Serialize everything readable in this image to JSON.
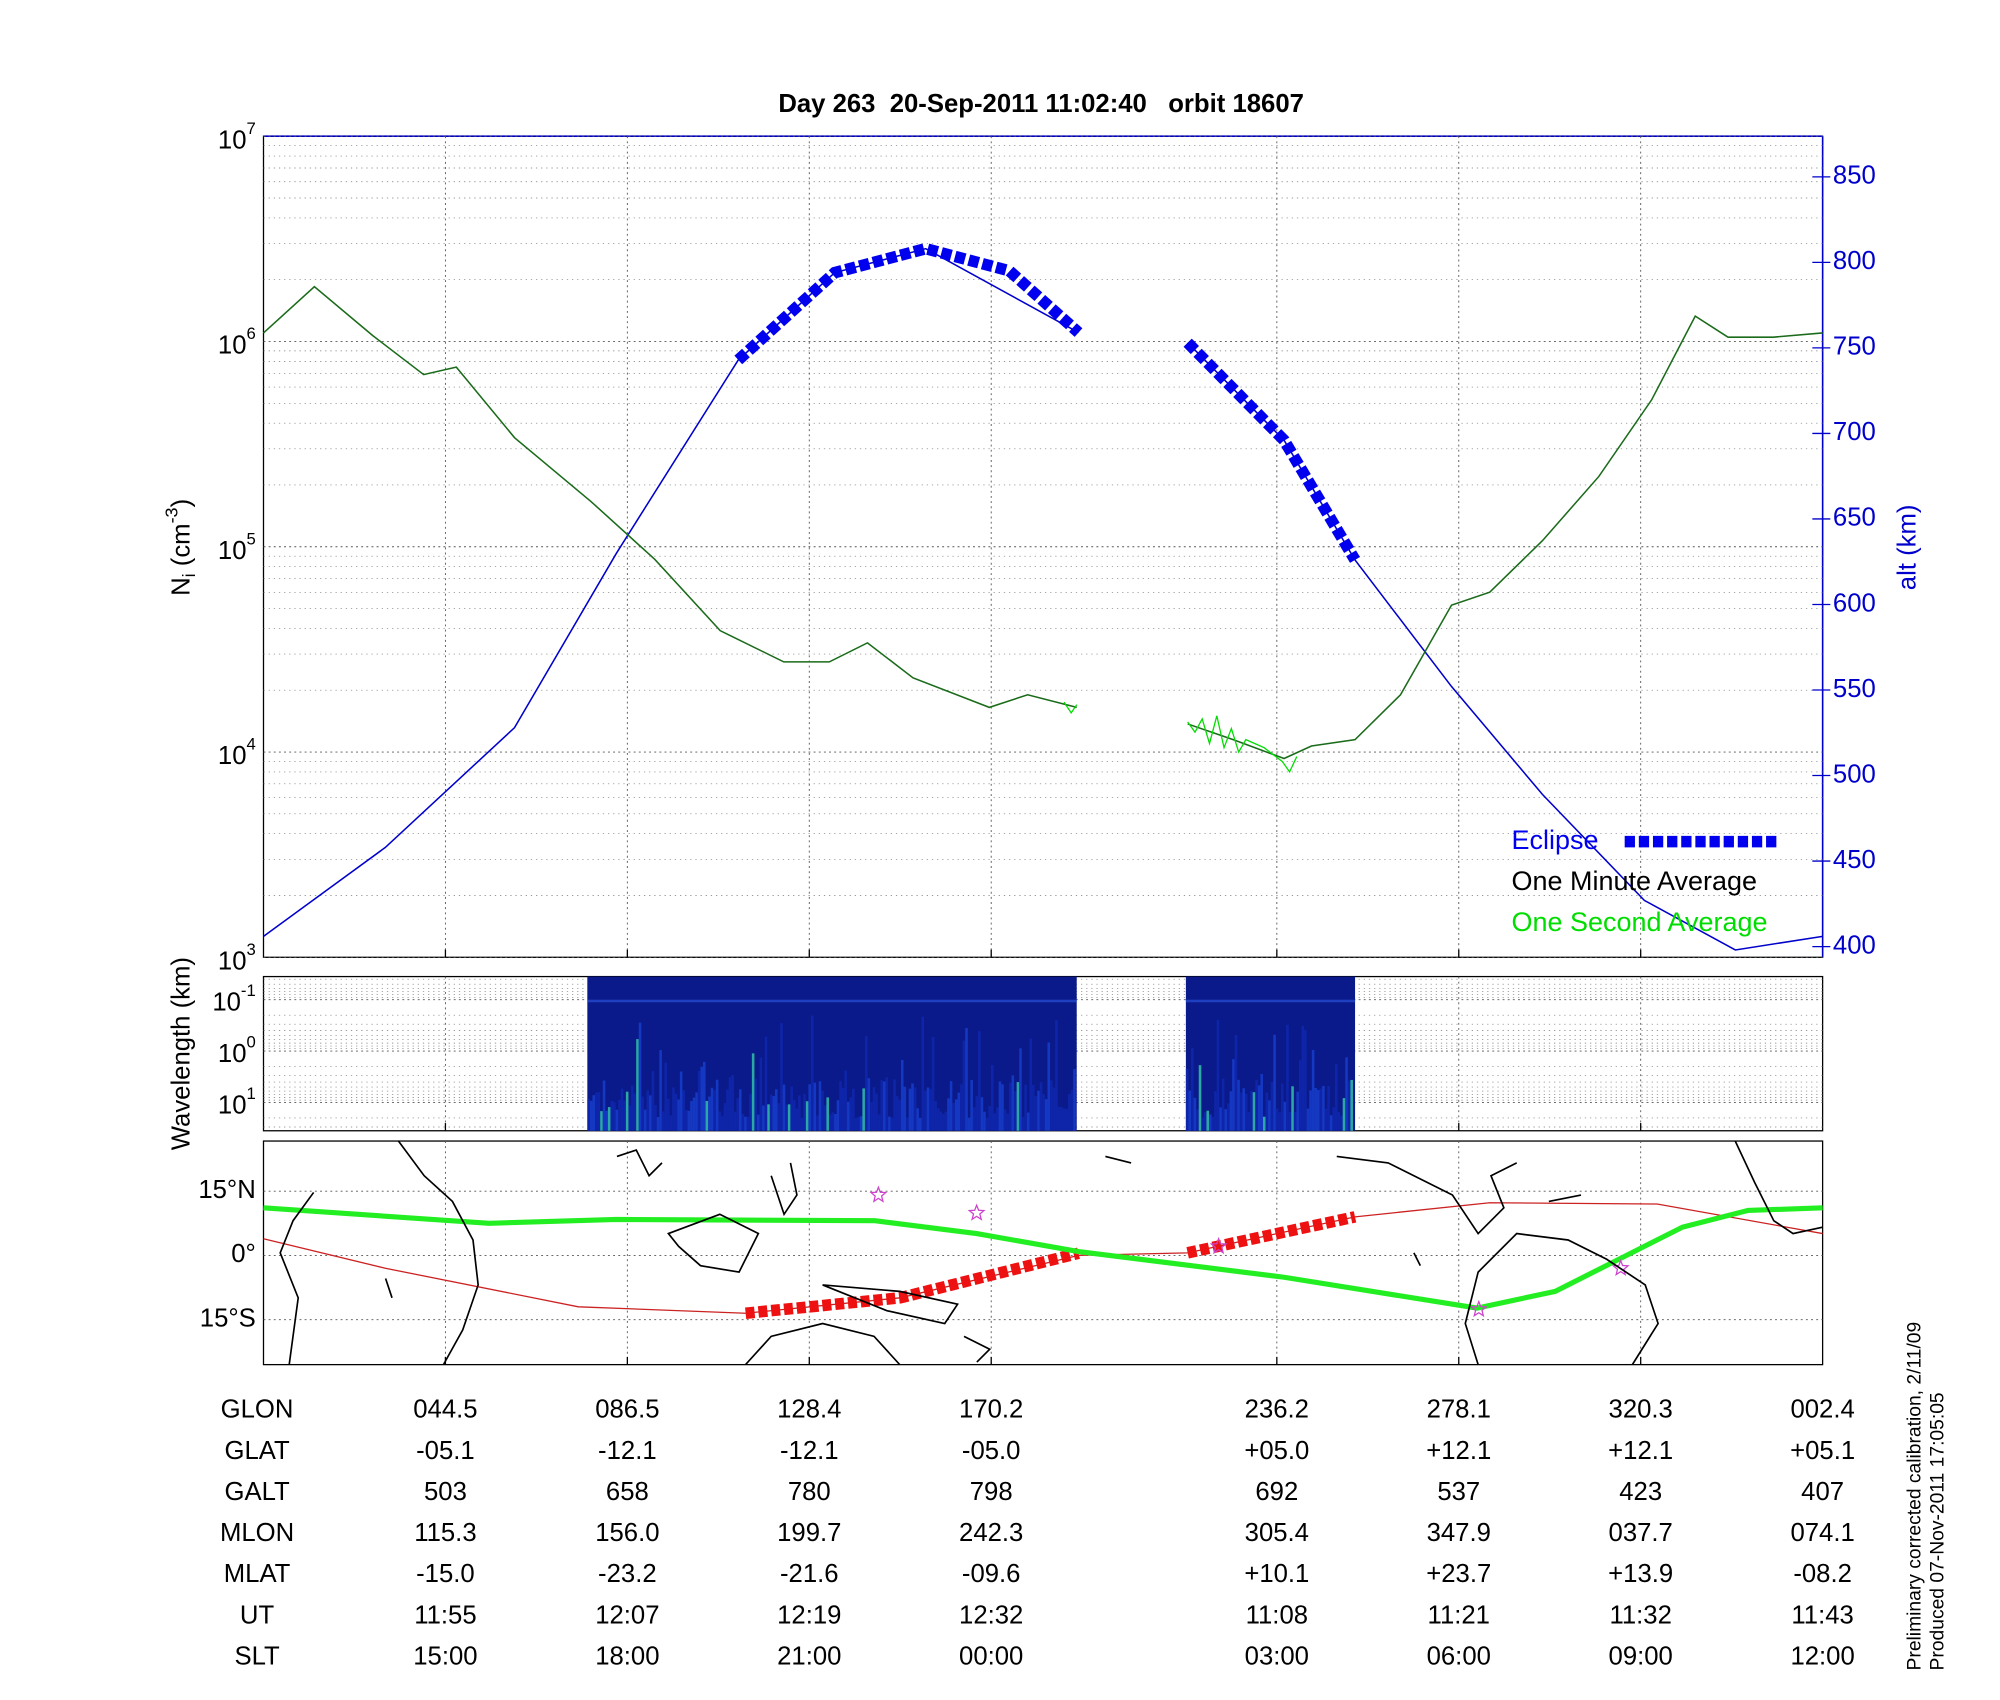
{
  "chart_data": {
    "type": "line",
    "title": "Day 263  20-Sep-2011 11:02:40   orbit 18607",
    "xlim": [
      0,
      8.57
    ],
    "xticks": [
      1,
      2,
      3,
      4,
      5.57,
      6.57,
      7.57
    ],
    "ylog": true,
    "ylim": [
      1000,
      10000000
    ],
    "yticks": [
      {
        "value": 1000,
        "label": "10",
        "exponent": "3"
      },
      {
        "value": 10000,
        "label": "10",
        "exponent": "4"
      },
      {
        "value": 100000,
        "label": "10",
        "exponent": "5"
      },
      {
        "value": 1000000,
        "label": "10",
        "exponent": "6"
      },
      {
        "value": 10000000,
        "label": "10",
        "exponent": "7"
      }
    ],
    "y_label": [
      "N",
      "i",
      " (cm",
      "-3",
      ")"
    ],
    "y2_label": "alt (km)",
    "y2lim": [
      393.75,
      873.75
    ],
    "y2ticks": [
      400,
      450,
      500,
      550,
      600,
      650,
      700,
      750,
      800,
      850
    ],
    "grid": true,
    "legend": "lower right",
    "series": [
      {
        "name": "Eclipse",
        "color": "#0000ee",
        "axis": "y2",
        "style": "eclipse",
        "x": [
          2.61,
          3.14,
          3.64,
          4.1,
          4.48,
          4.8,
          5.08,
          5.61,
          6.0
        ],
        "values": [
          743,
          794,
          808,
          795,
          759,
          null,
          753,
          696,
          626
        ]
      },
      {
        "name": "One Minute Average",
        "color": "#1a6b1a",
        "label_color": "#000000",
        "x": [
          0,
          0.28,
          0.6,
          0.88,
          1.06,
          1.38,
          1.8,
          2.15,
          2.51,
          2.86,
          3.11,
          3.32,
          3.57,
          3.99,
          4.2,
          4.47,
          4.8,
          5.08,
          5.33,
          5.61,
          5.76,
          6.0,
          6.25,
          6.53,
          6.74,
          7.03,
          7.34,
          7.63,
          7.87,
          8.05,
          8.3,
          8.57
        ],
        "values": [
          1100000,
          1850000,
          1070000,
          690000,
          750000,
          340000,
          166000,
          87000,
          39000,
          27500,
          27500,
          34000,
          23000,
          16500,
          19000,
          16500,
          null,
          13700,
          11500,
          9300,
          10700,
          11500,
          19000,
          52000,
          60000,
          107000,
          220000,
          520000,
          1330000,
          1050000,
          1050000,
          1100000
        ]
      },
      {
        "name": "One Second Average",
        "color": "#00dd00",
        "x": [
          4.4,
          4.44,
          4.47,
          4.8,
          5.08,
          5.12,
          5.16,
          5.2,
          5.24,
          5.28,
          5.32,
          5.36,
          5.4,
          5.5,
          5.6,
          5.64,
          5.68
        ],
        "values": [
          17500,
          15500,
          17000,
          null,
          14000,
          12500,
          14500,
          11000,
          15000,
          10500,
          13000,
          10000,
          11500,
          10500,
          9000,
          8000,
          9500
        ]
      },
      {
        "color": "#0000cc",
        "axis": "y2",
        "x": [
          0,
          0.67,
          1.38,
          1.94,
          2.61,
          3.14,
          3.64,
          4.48,
          4.8,
          5.08,
          5.61,
          6.0,
          6.53,
          7.03,
          7.59,
          8.09,
          8.57
        ],
        "values": [
          406,
          458,
          528,
          630,
          743,
          794,
          808,
          759,
          null,
          753,
          696,
          626,
          552,
          489,
          427,
          398,
          406
        ]
      }
    ],
    "spectrogram": {
      "y_label": "Wavelength (km)",
      "ylog": true,
      "ylim": [
        35.5,
        0.0355
      ],
      "yticks": [
        {
          "value": 0.1,
          "label": "10",
          "exponent": "-1"
        },
        {
          "value": 1,
          "label": "10",
          "exponent": "0"
        },
        {
          "value": 10,
          "label": "10",
          "exponent": "1"
        }
      ],
      "ranges": [
        [
          1.78,
          4.47
        ],
        [
          5.07,
          6.0
        ]
      ]
    },
    "map": {
      "ylim": [
        -25.5,
        26.7
      ],
      "yticks": [
        {
          "value": 15,
          "label": "15°N"
        },
        {
          "value": 0,
          "label": "0°"
        },
        {
          "value": -15,
          "label": "15°S"
        }
      ],
      "orbit": {
        "color": "#cc2222",
        "x": [
          0,
          0.67,
          1.73,
          2.65,
          3.5,
          4.48,
          5.08,
          6.0,
          6.74,
          7.66,
          8.57
        ],
        "values": [
          3.9,
          -3.0,
          -12.0,
          -13.5,
          -9.9,
          0,
          0.6,
          9.0,
          12.3,
          12.0,
          5.1
        ]
      },
      "eclipse": {
        "color": "#ee1111",
        "x": [
          2.65,
          3.5,
          4.48,
          4.8,
          5.08,
          6.0
        ],
        "values": [
          -13.5,
          -9.9,
          0.5,
          null,
          0.6,
          9.0
        ]
      },
      "equator": {
        "color": "#22ee22",
        "x": [
          0,
          1.24,
          1.94,
          3.36,
          3.92,
          4.48,
          5.61,
          6.67,
          7.1,
          7.45,
          7.8,
          8.16,
          8.57
        ],
        "values": [
          11.1,
          7.5,
          8.4,
          8.1,
          5.1,
          0.9,
          -5.1,
          -12.3,
          -8.4,
          -0.9,
          6.6,
          10.5,
          11.1
        ]
      },
      "stars": {
        "color": "#cc44cc",
        "x": [
          3.38,
          3.92,
          5.25,
          6.68,
          7.46
        ],
        "values": [
          14.1,
          9.9,
          2.1,
          -12.6,
          -3.0
        ]
      }
    }
  },
  "table": {
    "rows": [
      [
        "GLON",
        "044.5",
        "086.5",
        "128.4",
        "170.2",
        "236.2",
        "278.1",
        "320.3",
        "002.4"
      ],
      [
        "GLAT",
        "-05.1",
        "-12.1",
        "-12.1",
        "-05.0",
        "+05.0",
        "+12.1",
        "+12.1",
        "+05.1"
      ],
      [
        "GALT",
        "503",
        "658",
        "780",
        "798",
        "692",
        "537",
        "423",
        "407"
      ],
      [
        "MLON",
        "115.3",
        "156.0",
        "199.7",
        "242.3",
        "305.4",
        "347.9",
        "037.7",
        "074.1"
      ],
      [
        "MLAT",
        "-15.0",
        "-23.2",
        "-21.6",
        "-09.6",
        "+10.1",
        "+23.7",
        "+13.9",
        "-08.2"
      ],
      [
        "UT",
        "11:55",
        "12:07",
        "12:19",
        "12:32",
        "11:08",
        "11:21",
        "11:32",
        "11:43"
      ],
      [
        "SLT",
        "15:00",
        "18:00",
        "21:00",
        "00:00",
        "03:00",
        "06:00",
        "09:00",
        "12:00"
      ]
    ]
  },
  "footer": [
    "Preliminary corrected calibration, 2/11/09",
    "Produced 07-Nov-2011 17:05:05"
  ]
}
